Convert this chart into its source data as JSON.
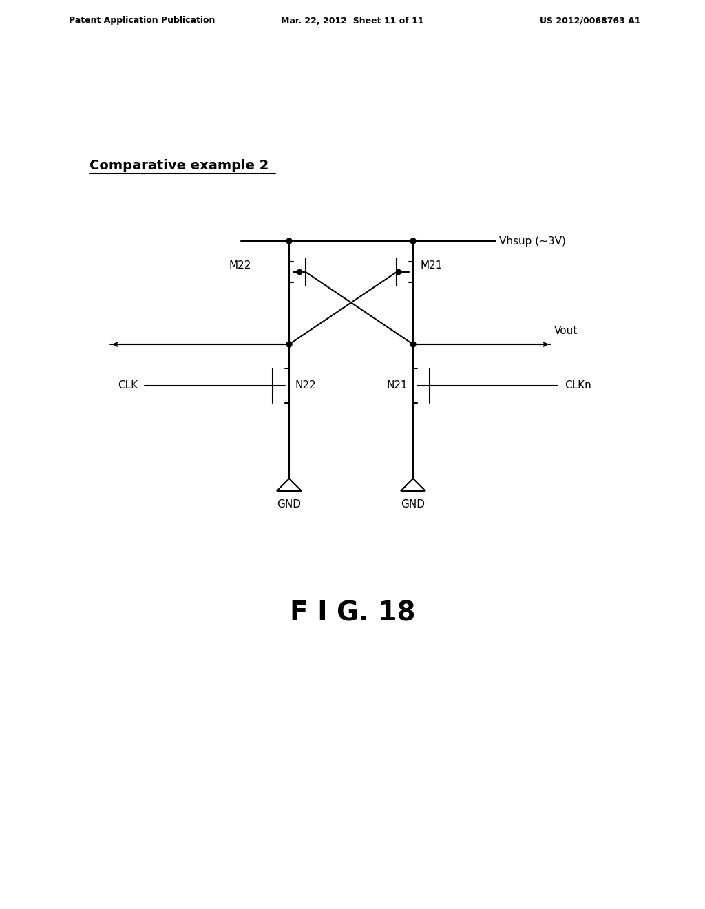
{
  "bg_color": "#ffffff",
  "line_color": "#000000",
  "header_left": "Patent Application Publication",
  "header_center": "Mar. 22, 2012  Sheet 11 of 11",
  "header_right": "US 2012/0068763 A1",
  "section_label": "Comparative example 2",
  "fig_label": "F I G. 18",
  "vhsup_label": "Vhsup (~3V)",
  "vout_label": "Vout",
  "clk_label": "CLK",
  "clkn_label": "CLKn",
  "gnd_label": "GND",
  "m22_label": "M22",
  "m21_label": "M21",
  "n22_label": "N22",
  "n21_label": "N21"
}
